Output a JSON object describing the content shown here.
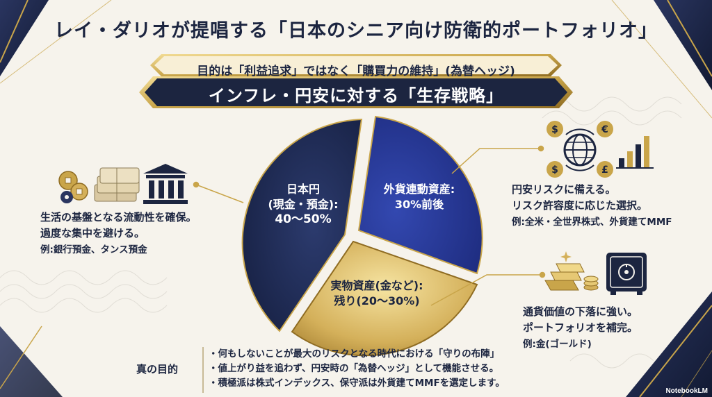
{
  "title": "レイ・ダリオが提唱する「日本のシニア向け防衛的ポートフォリオ」",
  "banner": {
    "line1": "目的は「利益追求」ではなく「購買力の維持」(為替ヘッジ)",
    "line2": "インフレ・円安に対する「生存戦略」"
  },
  "slices": {
    "jpy": {
      "line1": "日本円",
      "line2": "(現金・預金):",
      "line3": "40〜50%"
    },
    "fx": {
      "line1": "外貨連動資産:",
      "line2": "30%前後"
    },
    "real": {
      "line1": "実物資産(金など):",
      "line2": "残り(20〜30%)"
    }
  },
  "descriptions": {
    "jpy": {
      "line1": "生活の基盤となる流動性を確保。",
      "line2": "過度な集中を避ける。",
      "example": "例:銀行預金、タンス預金"
    },
    "fx": {
      "line1": "円安リスクに備える。",
      "line2": "リスク許容度に応じた選択。",
      "example": "例:全米・全世界株式、外貨建てMMF"
    },
    "real": {
      "line1": "通貨価値の下落に強い。",
      "line2": "ポートフォリオを補完。",
      "example": "例:金(ゴールド)"
    }
  },
  "purpose": {
    "label": "真の目的",
    "bullets": [
      "何もしないことが最大のリスクとなる時代における「守りの布陣」",
      "値上がり益を追わず、円安時の「為替ヘッジ」として機能させる。",
      "積極派は株式インデックス、保守派は外貨建てMMFを選定します。"
    ]
  },
  "icons": {
    "currency_symbols": [
      "$",
      "€",
      "$",
      "£"
    ]
  },
  "brand": "NotebookLM",
  "colors": {
    "navy": "#1c2540",
    "blue": "#22338f",
    "gold": "#c9a54a"
  }
}
